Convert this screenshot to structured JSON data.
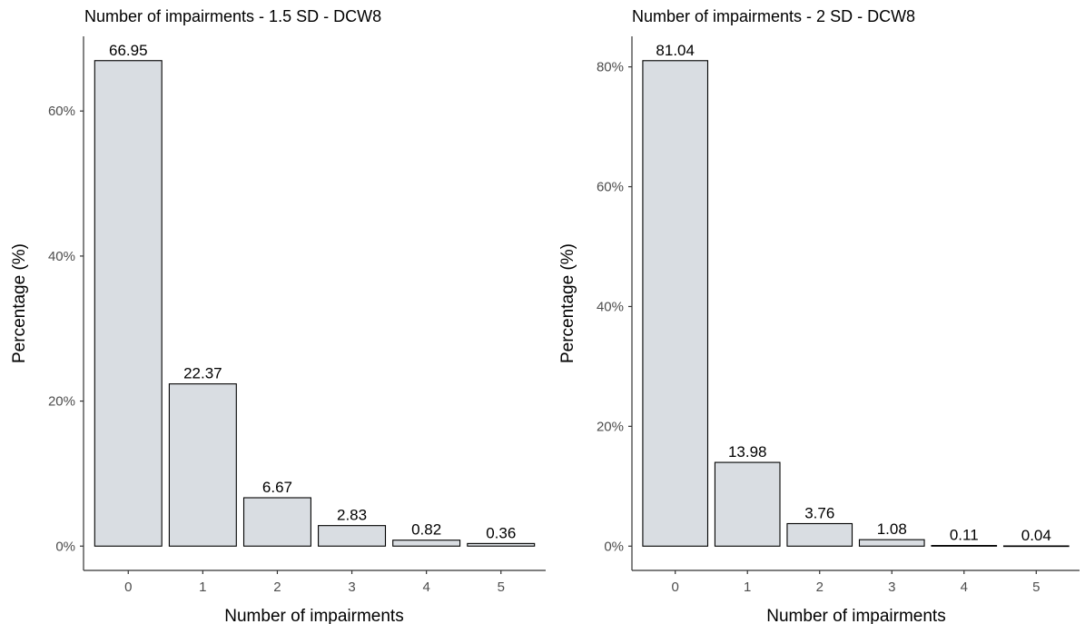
{
  "colors": {
    "bar_fill": "#d9dde2",
    "bar_stroke": "#000000"
  },
  "chart_data": [
    {
      "type": "bar",
      "title": "Number of impairments - 1.5 SD - DCW8",
      "xlabel": "Number of impairments",
      "ylabel": "Percentage (%)",
      "categories": [
        "0",
        "1",
        "2",
        "3",
        "4",
        "5"
      ],
      "values": [
        66.95,
        22.37,
        6.67,
        2.83,
        0.82,
        0.36
      ],
      "data_labels": [
        "66.95",
        "22.37",
        "6.67",
        "2.83",
        "0.82",
        "0.36"
      ],
      "y_ticks": [
        0,
        20,
        40,
        60
      ],
      "y_tick_labels": [
        "0%",
        "20%",
        "40%",
        "60%"
      ],
      "ylim": [
        -3.35,
        70.3
      ],
      "grid": false
    },
    {
      "type": "bar",
      "title": "Number of impairments - 2 SD - DCW8",
      "xlabel": "Number of impairments",
      "ylabel": "Percentage (%)",
      "categories": [
        "0",
        "1",
        "2",
        "3",
        "4",
        "5"
      ],
      "values": [
        81.04,
        13.98,
        3.76,
        1.08,
        0.11,
        0.04
      ],
      "data_labels": [
        "81.04",
        "13.98",
        "3.76",
        "1.08",
        "0.11",
        "0.04"
      ],
      "y_ticks": [
        0,
        20,
        40,
        60,
        80
      ],
      "y_tick_labels": [
        "0%",
        "20%",
        "40%",
        "60%",
        "80%"
      ],
      "ylim": [
        -4.05,
        85.1
      ],
      "grid": false
    }
  ]
}
